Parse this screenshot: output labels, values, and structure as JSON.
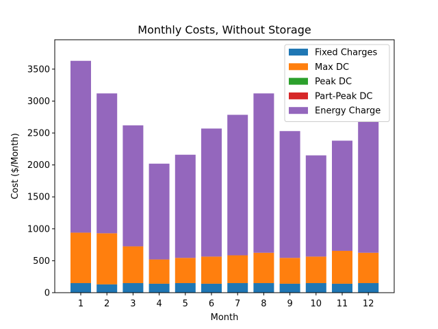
{
  "chart_data": {
    "type": "bar",
    "stacked": true,
    "title": "Monthly Costs, Without Storage",
    "xlabel": "Month",
    "ylabel": "Cost ($/Month)",
    "categories": [
      "1",
      "2",
      "3",
      "4",
      "5",
      "6",
      "7",
      "8",
      "9",
      "10",
      "11",
      "12"
    ],
    "ylim": [
      0,
      3960
    ],
    "yticks": [
      0,
      500,
      1000,
      1500,
      2000,
      2500,
      3000,
      3500
    ],
    "legend_position": "top-right",
    "series": [
      {
        "name": "Fixed Charges",
        "color": "#1f77b4",
        "values": [
          150,
          130,
          150,
          140,
          150,
          140,
          150,
          150,
          140,
          150,
          140,
          150
        ]
      },
      {
        "name": "Max DC",
        "color": "#ff7f0e",
        "values": [
          790,
          800,
          575,
          380,
          395,
          425,
          435,
          475,
          405,
          415,
          515,
          475
        ]
      },
      {
        "name": "Peak DC",
        "color": "#2ca02c",
        "values": [
          0,
          0,
          0,
          0,
          0,
          0,
          0,
          0,
          0,
          0,
          0,
          0
        ]
      },
      {
        "name": "Part-Peak DC",
        "color": "#d62728",
        "values": [
          0,
          0,
          0,
          0,
          0,
          0,
          0,
          0,
          0,
          0,
          0,
          0
        ]
      },
      {
        "name": "Energy Charge",
        "color": "#9467bd",
        "values": [
          2690,
          2190,
          1895,
          1500,
          1615,
          2005,
          2200,
          2495,
          1985,
          1585,
          1725,
          2055
        ]
      }
    ]
  }
}
